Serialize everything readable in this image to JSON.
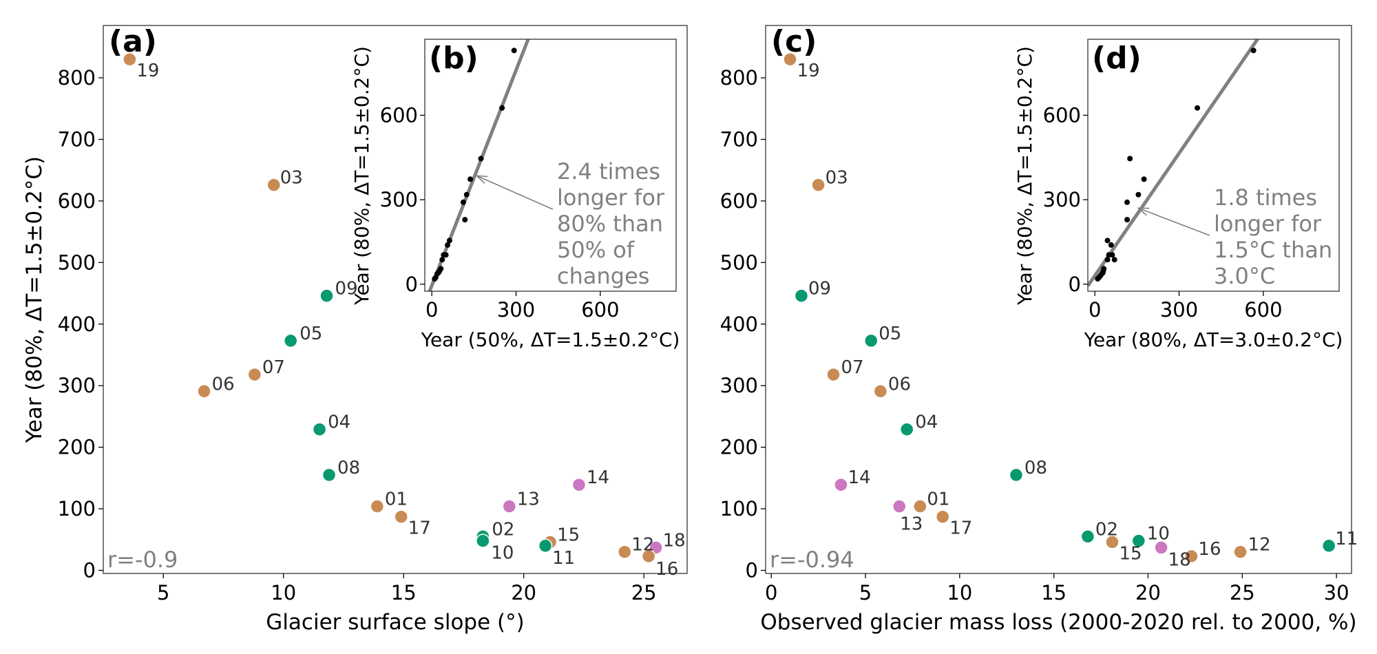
{
  "chart_data": [
    {
      "panel": "(a)",
      "type": "scatter",
      "xlabel": "Glacier surface slope (°)",
      "ylabel": "Year (80%, ΔT=1.5±0.2°C)",
      "xlim": [
        2.5,
        26.8
      ],
      "ylim": [
        -5,
        885
      ],
      "xticks": [
        5,
        10,
        15,
        20,
        25
      ],
      "yticks": [
        0,
        100,
        200,
        300,
        400,
        500,
        600,
        700,
        800
      ],
      "annotation": "r=-0.9",
      "points": [
        {
          "id": "19",
          "x": 3.6,
          "y": 830,
          "color": "#c98b54"
        },
        {
          "id": "03",
          "x": 9.6,
          "y": 626,
          "color": "#c98b54"
        },
        {
          "id": "09",
          "x": 11.8,
          "y": 446,
          "color": "#089970"
        },
        {
          "id": "05",
          "x": 10.3,
          "y": 373,
          "color": "#089970"
        },
        {
          "id": "07",
          "x": 8.8,
          "y": 318,
          "color": "#c98b54"
        },
        {
          "id": "06",
          "x": 6.7,
          "y": 291,
          "color": "#c98b54"
        },
        {
          "id": "04",
          "x": 11.5,
          "y": 229,
          "color": "#089970"
        },
        {
          "id": "08",
          "x": 11.9,
          "y": 155,
          "color": "#089970"
        },
        {
          "id": "14",
          "x": 22.3,
          "y": 139,
          "color": "#cc77c2"
        },
        {
          "id": "01",
          "x": 13.9,
          "y": 104,
          "color": "#c98b54"
        },
        {
          "id": "13",
          "x": 19.4,
          "y": 104,
          "color": "#cc77c2"
        },
        {
          "id": "17",
          "x": 14.9,
          "y": 87,
          "color": "#c98b54"
        },
        {
          "id": "02",
          "x": 18.3,
          "y": 55,
          "color": "#089970"
        },
        {
          "id": "10",
          "x": 18.3,
          "y": 48,
          "color": "#089970"
        },
        {
          "id": "15",
          "x": 21.1,
          "y": 46,
          "color": "#c98b54"
        },
        {
          "id": "11",
          "x": 20.9,
          "y": 40,
          "color": "#089970"
        },
        {
          "id": "18",
          "x": 25.5,
          "y": 37,
          "color": "#cc77c2"
        },
        {
          "id": "12",
          "x": 24.2,
          "y": 30,
          "color": "#c98b54"
        },
        {
          "id": "16",
          "x": 25.2,
          "y": 23,
          "color": "#c98b54"
        }
      ]
    },
    {
      "panel": "(b)",
      "type": "scatter",
      "xlabel": "Year (50%, ΔT=1.5±0.2°C)",
      "ylabel": "Year (80%, ΔT=1.5±0.2°C)",
      "xlim": [
        -25,
        870
      ],
      "ylim": [
        -25,
        870
      ],
      "xticks": [
        0,
        300,
        600
      ],
      "yticks": [
        0,
        300,
        600
      ],
      "fit_line": {
        "slope": 2.55,
        "intercept": -5
      },
      "note": [
        "2.4 times",
        "longer for",
        "80% than",
        "50% of",
        "changes"
      ],
      "note_arrow_target": [
        160,
        385
      ],
      "points": [
        {
          "x": 10,
          "y": 19
        },
        {
          "x": 14,
          "y": 24
        },
        {
          "x": 19,
          "y": 37
        },
        {
          "x": 23,
          "y": 40
        },
        {
          "x": 27,
          "y": 46
        },
        {
          "x": 32,
          "y": 55
        },
        {
          "x": 37,
          "y": 87
        },
        {
          "x": 42,
          "y": 104
        },
        {
          "x": 50,
          "y": 104
        },
        {
          "x": 56,
          "y": 139
        },
        {
          "x": 63,
          "y": 155
        },
        {
          "x": 112,
          "y": 291
        },
        {
          "x": 118,
          "y": 229
        },
        {
          "x": 124,
          "y": 318
        },
        {
          "x": 137,
          "y": 373
        },
        {
          "x": 175,
          "y": 446
        },
        {
          "x": 250,
          "y": 626
        },
        {
          "x": 293,
          "y": 830
        }
      ]
    },
    {
      "panel": "(c)",
      "type": "scatter",
      "xlabel": "Observed glacier mass loss (2000-2020 rel. to 2000, %)",
      "ylabel": "",
      "xlim": [
        -0.3,
        30.8
      ],
      "ylim": [
        -5,
        885
      ],
      "xticks": [
        0,
        5,
        10,
        15,
        20,
        25,
        30
      ],
      "yticks": [
        0,
        100,
        200,
        300,
        400,
        500,
        600,
        700,
        800
      ],
      "annotation": "r=-0.94",
      "points": [
        {
          "id": "19",
          "x": 1.0,
          "y": 830,
          "color": "#c98b54"
        },
        {
          "id": "03",
          "x": 2.5,
          "y": 626,
          "color": "#c98b54"
        },
        {
          "id": "09",
          "x": 1.6,
          "y": 446,
          "color": "#089970"
        },
        {
          "id": "05",
          "x": 5.3,
          "y": 373,
          "color": "#089970"
        },
        {
          "id": "07",
          "x": 3.3,
          "y": 318,
          "color": "#c98b54"
        },
        {
          "id": "06",
          "x": 5.8,
          "y": 291,
          "color": "#c98b54"
        },
        {
          "id": "04",
          "x": 7.2,
          "y": 229,
          "color": "#089970"
        },
        {
          "id": "08",
          "x": 13.0,
          "y": 155,
          "color": "#089970"
        },
        {
          "id": "14",
          "x": 3.7,
          "y": 139,
          "color": "#cc77c2"
        },
        {
          "id": "01",
          "x": 7.9,
          "y": 104,
          "color": "#c98b54"
        },
        {
          "id": "13",
          "x": 6.8,
          "y": 104,
          "color": "#cc77c2"
        },
        {
          "id": "17",
          "x": 9.1,
          "y": 87,
          "color": "#c98b54"
        },
        {
          "id": "02",
          "x": 16.8,
          "y": 55,
          "color": "#089970"
        },
        {
          "id": "15",
          "x": 18.1,
          "y": 46,
          "color": "#c98b54"
        },
        {
          "id": "10",
          "x": 19.5,
          "y": 48,
          "color": "#089970"
        },
        {
          "id": "18",
          "x": 20.7,
          "y": 37,
          "color": "#cc77c2"
        },
        {
          "id": "16",
          "x": 22.3,
          "y": 23,
          "color": "#c98b54"
        },
        {
          "id": "12",
          "x": 24.9,
          "y": 30,
          "color": "#c98b54"
        },
        {
          "id": "11",
          "x": 29.6,
          "y": 40,
          "color": "#089970"
        }
      ]
    },
    {
      "panel": "(d)",
      "type": "scatter",
      "xlabel": "Year (80%, ΔT=3.0±0.2°C)",
      "ylabel": "Year (80%, ΔT=1.5±0.2°C)",
      "xlim": [
        -25,
        870
      ],
      "ylim": [
        -25,
        870
      ],
      "xticks": [
        0,
        300,
        600
      ],
      "yticks": [
        0,
        300,
        600
      ],
      "fit_line": {
        "slope": 1.45,
        "intercept": 30
      },
      "note": [
        "1.8 times",
        "longer for",
        "1.5°C than",
        "3.0°C"
      ],
      "note_arrow_target": [
        155,
        270
      ],
      "points": [
        {
          "x": 10,
          "y": 19
        },
        {
          "x": 15,
          "y": 24
        },
        {
          "x": 20,
          "y": 30
        },
        {
          "x": 25,
          "y": 37
        },
        {
          "x": 28,
          "y": 40
        },
        {
          "x": 30,
          "y": 46
        },
        {
          "x": 32,
          "y": 55
        },
        {
          "x": 45,
          "y": 87
        },
        {
          "x": 50,
          "y": 104
        },
        {
          "x": 62,
          "y": 104
        },
        {
          "x": 70,
          "y": 87
        },
        {
          "x": 58,
          "y": 139
        },
        {
          "x": 45,
          "y": 155
        },
        {
          "x": 115,
          "y": 229
        },
        {
          "x": 115,
          "y": 291
        },
        {
          "x": 155,
          "y": 318
        },
        {
          "x": 175,
          "y": 373
        },
        {
          "x": 125,
          "y": 446
        },
        {
          "x": 365,
          "y": 626
        },
        {
          "x": 565,
          "y": 830
        }
      ]
    }
  ]
}
